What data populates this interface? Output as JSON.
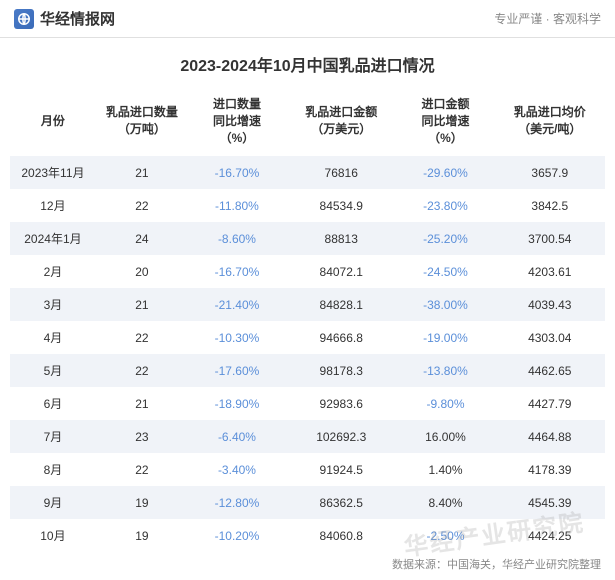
{
  "header": {
    "brand_name": "华经情报网",
    "tagline": "专业严谨 · 客观科学"
  },
  "title": "2023-2024年10月中国乳品进口情况",
  "table": {
    "columns": [
      "月份",
      "乳品进口数量\n（万吨）",
      "进口数量\n同比增速\n（%）",
      "乳品进口金额\n（万美元）",
      "进口金额\n同比增速\n（%）",
      "乳品进口均价\n（美元/吨）"
    ],
    "rows": [
      {
        "month": "2023年11月",
        "qty": "21",
        "qty_yoy": "-16.70%",
        "qty_yoy_neg": true,
        "val": "76816",
        "val_yoy": "-29.60%",
        "val_yoy_neg": true,
        "avg": "3657.9",
        "alt": true
      },
      {
        "month": "12月",
        "qty": "22",
        "qty_yoy": "-11.80%",
        "qty_yoy_neg": true,
        "val": "84534.9",
        "val_yoy": "-23.80%",
        "val_yoy_neg": true,
        "avg": "3842.5",
        "alt": false
      },
      {
        "month": "2024年1月",
        "qty": "24",
        "qty_yoy": "-8.60%",
        "qty_yoy_neg": true,
        "val": "88813",
        "val_yoy": "-25.20%",
        "val_yoy_neg": true,
        "avg": "3700.54",
        "alt": true
      },
      {
        "month": "2月",
        "qty": "20",
        "qty_yoy": "-16.70%",
        "qty_yoy_neg": true,
        "val": "84072.1",
        "val_yoy": "-24.50%",
        "val_yoy_neg": true,
        "avg": "4203.61",
        "alt": false
      },
      {
        "month": "3月",
        "qty": "21",
        "qty_yoy": "-21.40%",
        "qty_yoy_neg": true,
        "val": "84828.1",
        "val_yoy": "-38.00%",
        "val_yoy_neg": true,
        "avg": "4039.43",
        "alt": true
      },
      {
        "month": "4月",
        "qty": "22",
        "qty_yoy": "-10.30%",
        "qty_yoy_neg": true,
        "val": "94666.8",
        "val_yoy": "-19.00%",
        "val_yoy_neg": true,
        "avg": "4303.04",
        "alt": false
      },
      {
        "month": "5月",
        "qty": "22",
        "qty_yoy": "-17.60%",
        "qty_yoy_neg": true,
        "val": "98178.3",
        "val_yoy": "-13.80%",
        "val_yoy_neg": true,
        "avg": "4462.65",
        "alt": true
      },
      {
        "month": "6月",
        "qty": "21",
        "qty_yoy": "-18.90%",
        "qty_yoy_neg": true,
        "val": "92983.6",
        "val_yoy": "-9.80%",
        "val_yoy_neg": true,
        "avg": "4427.79",
        "alt": false
      },
      {
        "month": "7月",
        "qty": "23",
        "qty_yoy": "-6.40%",
        "qty_yoy_neg": true,
        "val": "102692.3",
        "val_yoy": "16.00%",
        "val_yoy_neg": false,
        "avg": "4464.88",
        "alt": true
      },
      {
        "month": "8月",
        "qty": "22",
        "qty_yoy": "-3.40%",
        "qty_yoy_neg": true,
        "val": "91924.5",
        "val_yoy": "1.40%",
        "val_yoy_neg": false,
        "avg": "4178.39",
        "alt": false
      },
      {
        "month": "9月",
        "qty": "19",
        "qty_yoy": "-12.80%",
        "qty_yoy_neg": true,
        "val": "86362.5",
        "val_yoy": "8.40%",
        "val_yoy_neg": false,
        "avg": "4545.39",
        "alt": true
      },
      {
        "month": "10月",
        "qty": "19",
        "qty_yoy": "-10.20%",
        "qty_yoy_neg": true,
        "val": "84060.8",
        "val_yoy": "-2.50%",
        "val_yoy_neg": true,
        "avg": "4424.25",
        "alt": false
      }
    ]
  },
  "source": "数据来源：中国海关，华经产业研究院整理",
  "watermark": "华经产业研究院",
  "colors": {
    "negative": "#5b8fd9",
    "positive": "#333333",
    "alt_row_bg": "#f0f3f8",
    "text": "#333333",
    "muted": "#888888",
    "brand_icon_bg": "#4a7bc8"
  }
}
